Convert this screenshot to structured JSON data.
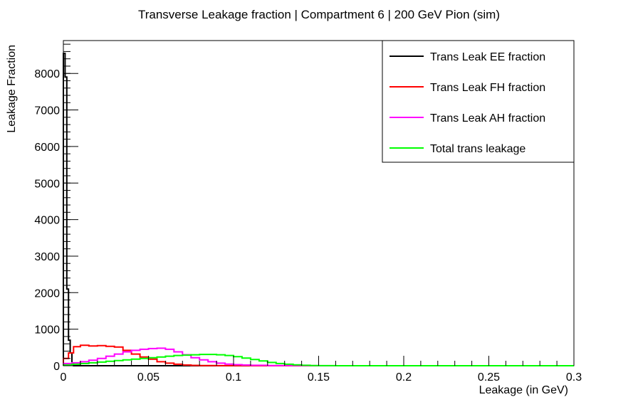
{
  "chart_data": {
    "type": "line",
    "title": "Transverse Leakage fraction | Compartment 6 | 200 GeV Pion (sim)",
    "xlabel": "Leakage (in GeV)",
    "ylabel": "Leakage Fraction",
    "xlim": [
      0,
      0.3
    ],
    "ylim": [
      0,
      8900
    ],
    "x_ticks": [
      0,
      0.05,
      0.1,
      0.15,
      0.2,
      0.25,
      0.3
    ],
    "x_tick_labels": [
      "0",
      "0.05",
      "0.1",
      "0.15",
      "0.2",
      "0.25",
      "0.3"
    ],
    "y_ticks": [
      0,
      1000,
      2000,
      3000,
      4000,
      5000,
      6000,
      7000,
      8000
    ],
    "y_tick_labels": [
      "0",
      "1000",
      "2000",
      "3000",
      "4000",
      "5000",
      "6000",
      "7000",
      "8000"
    ],
    "legend_position": "top-right",
    "style": "step histogram",
    "series": [
      {
        "name": "Trans Leak EE fraction",
        "color": "#000000",
        "x": [
          0.0,
          0.001,
          0.002,
          0.003,
          0.004,
          0.005,
          0.006,
          0.3
        ],
        "y": [
          8550,
          7900,
          2100,
          700,
          350,
          50,
          0,
          0
        ]
      },
      {
        "name": "Trans Leak FH fraction",
        "color": "#ff0000",
        "x": [
          0.0,
          0.003,
          0.006,
          0.01,
          0.015,
          0.02,
          0.025,
          0.03,
          0.035,
          0.04,
          0.045,
          0.05,
          0.055,
          0.06,
          0.065,
          0.07,
          0.075,
          0.08,
          0.09,
          0.1,
          0.11,
          0.3
        ],
        "y": [
          200,
          350,
          520,
          560,
          540,
          550,
          530,
          510,
          420,
          320,
          240,
          180,
          110,
          70,
          40,
          20,
          10,
          5,
          2,
          1,
          0,
          0
        ]
      },
      {
        "name": "Trans Leak AH fraction",
        "color": "#ff00ff",
        "x": [
          0.0,
          0.005,
          0.01,
          0.015,
          0.02,
          0.025,
          0.03,
          0.035,
          0.04,
          0.045,
          0.05,
          0.055,
          0.06,
          0.065,
          0.07,
          0.075,
          0.08,
          0.085,
          0.09,
          0.095,
          0.1,
          0.105,
          0.11,
          0.12,
          0.13,
          0.14,
          0.15,
          0.3
        ],
        "y": [
          60,
          80,
          110,
          150,
          200,
          260,
          320,
          380,
          420,
          450,
          470,
          480,
          450,
          380,
          300,
          220,
          160,
          110,
          70,
          45,
          30,
          20,
          12,
          6,
          3,
          1,
          0,
          0
        ]
      },
      {
        "name": "Total trans leakage",
        "color": "#00ff00",
        "x": [
          0.0,
          0.005,
          0.01,
          0.015,
          0.02,
          0.025,
          0.03,
          0.035,
          0.04,
          0.045,
          0.05,
          0.055,
          0.06,
          0.065,
          0.07,
          0.075,
          0.08,
          0.085,
          0.09,
          0.095,
          0.1,
          0.105,
          0.11,
          0.115,
          0.12,
          0.125,
          0.13,
          0.135,
          0.14,
          0.145,
          0.15,
          0.16,
          0.3
        ],
        "y": [
          20,
          40,
          60,
          80,
          100,
          120,
          140,
          160,
          180,
          200,
          220,
          240,
          260,
          280,
          290,
          300,
          310,
          310,
          300,
          280,
          250,
          210,
          170,
          130,
          90,
          60,
          40,
          25,
          12,
          6,
          2,
          0,
          0
        ]
      }
    ]
  }
}
